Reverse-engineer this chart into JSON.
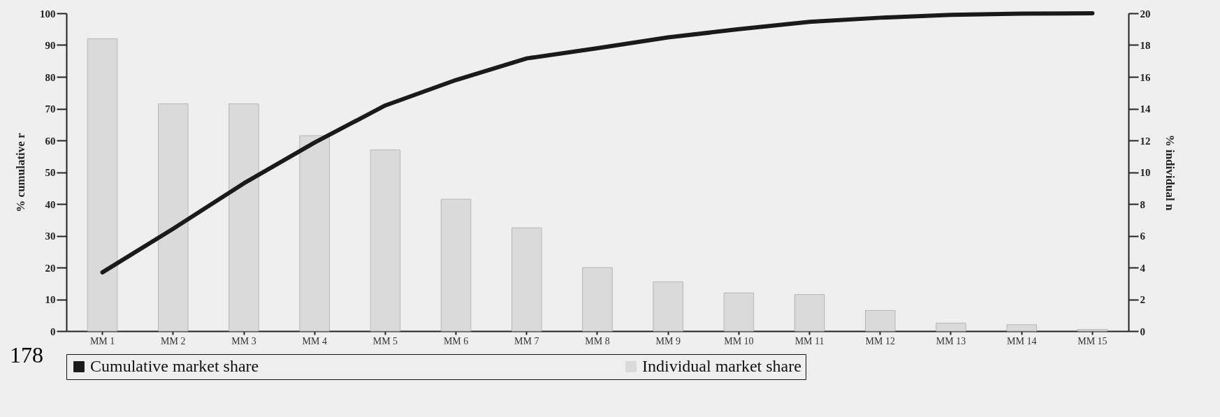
{
  "chart_data": {
    "type": "bar",
    "categories": [
      "MM 1",
      "MM 2",
      "MM 3",
      "MM 4",
      "MM 5",
      "MM 6",
      "MM 7",
      "MM 8",
      "MM 9",
      "MM 10",
      "MM 11",
      "MM 12",
      "MM 13",
      "MM 14",
      "MM 15"
    ],
    "series": [
      {
        "name": "Cumulative market share",
        "type": "line",
        "color": "#1a1a1a",
        "values": [
          18.5,
          32.2,
          46.5,
          59.3,
          71,
          79,
          85.8,
          89,
          92.4,
          95,
          97.3,
          98.6,
          99.5,
          99.9,
          100
        ]
      },
      {
        "name": "Individual market share",
        "axis": "y2",
        "color": "#dadada",
        "values": [
          18.4,
          14.3,
          14.3,
          12.3,
          11.4,
          8.3,
          6.5,
          4.0,
          3.1,
          2.4,
          2.3,
          1.3,
          0.5,
          0.4,
          0.1
        ]
      }
    ],
    "ylabel": "% cumulative r",
    "y2label": "% individual n",
    "ylim": [
      0,
      100
    ],
    "yticks": [
      0,
      10,
      20,
      30,
      40,
      50,
      60,
      70,
      80,
      90,
      100
    ],
    "y2lim": [
      0,
      20
    ],
    "y2ticks": [
      0,
      2,
      4,
      6,
      8,
      10,
      12,
      14,
      16,
      18,
      20
    ],
    "grid": false,
    "legend": "bottom",
    "marker": "none",
    "annotations": [
      "178"
    ]
  }
}
